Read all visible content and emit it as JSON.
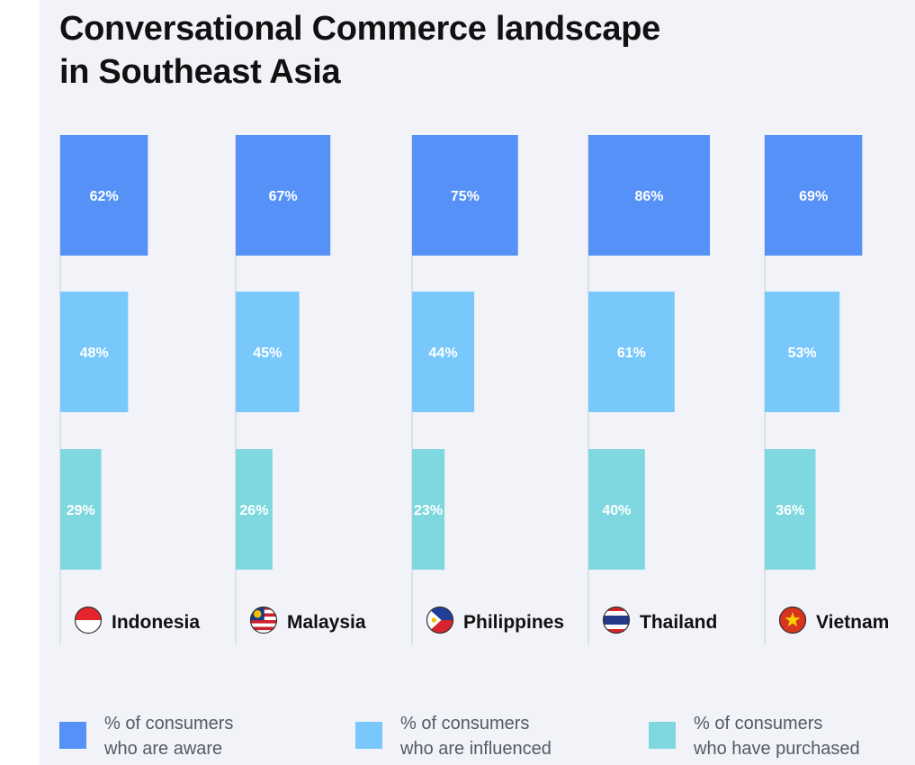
{
  "title_line1": "Conversational Commerce landscape",
  "title_line2": "in Southeast Asia",
  "colors": {
    "aware": "#5591f7",
    "influenced": "#78c8fb",
    "purchased": "#7fd8e0",
    "divider": "#c9ccd3",
    "panel": "#f1f3f8"
  },
  "chart_data": {
    "type": "bar",
    "orientation": "horizontal",
    "categories": [
      "Indonesia",
      "Malaysia",
      "Philippines",
      "Thailand",
      "Vietnam"
    ],
    "series": [
      {
        "name": "% of consumers who are aware",
        "values": [
          62,
          67,
          75,
          86,
          69
        ],
        "labels": [
          "62%",
          "67%",
          "75%",
          "86%",
          "69%"
        ]
      },
      {
        "name": "% of consumers who are influenced",
        "values": [
          48,
          45,
          44,
          61,
          53
        ],
        "labels": [
          "48%",
          "45%",
          "44%",
          "61%",
          "53%"
        ]
      },
      {
        "name": "% of consumers who have purchased",
        "values": [
          29,
          26,
          23,
          40,
          36
        ],
        "labels": [
          "29%",
          "26%",
          "23%",
          "40%",
          "36%"
        ]
      }
    ],
    "value_unit": "%",
    "legend_position": "bottom",
    "flag_icons": [
      "indonesia-flag-icon",
      "malaysia-flag-icon",
      "philippines-flag-icon",
      "thailand-flag-icon",
      "vietnam-flag-icon"
    ]
  },
  "legend": [
    {
      "line1": "% of consumers",
      "line2": "who are aware"
    },
    {
      "line1": "% of consumers",
      "line2": "who are influenced"
    },
    {
      "line1": "% of consumers",
      "line2": "who have purchased"
    }
  ]
}
